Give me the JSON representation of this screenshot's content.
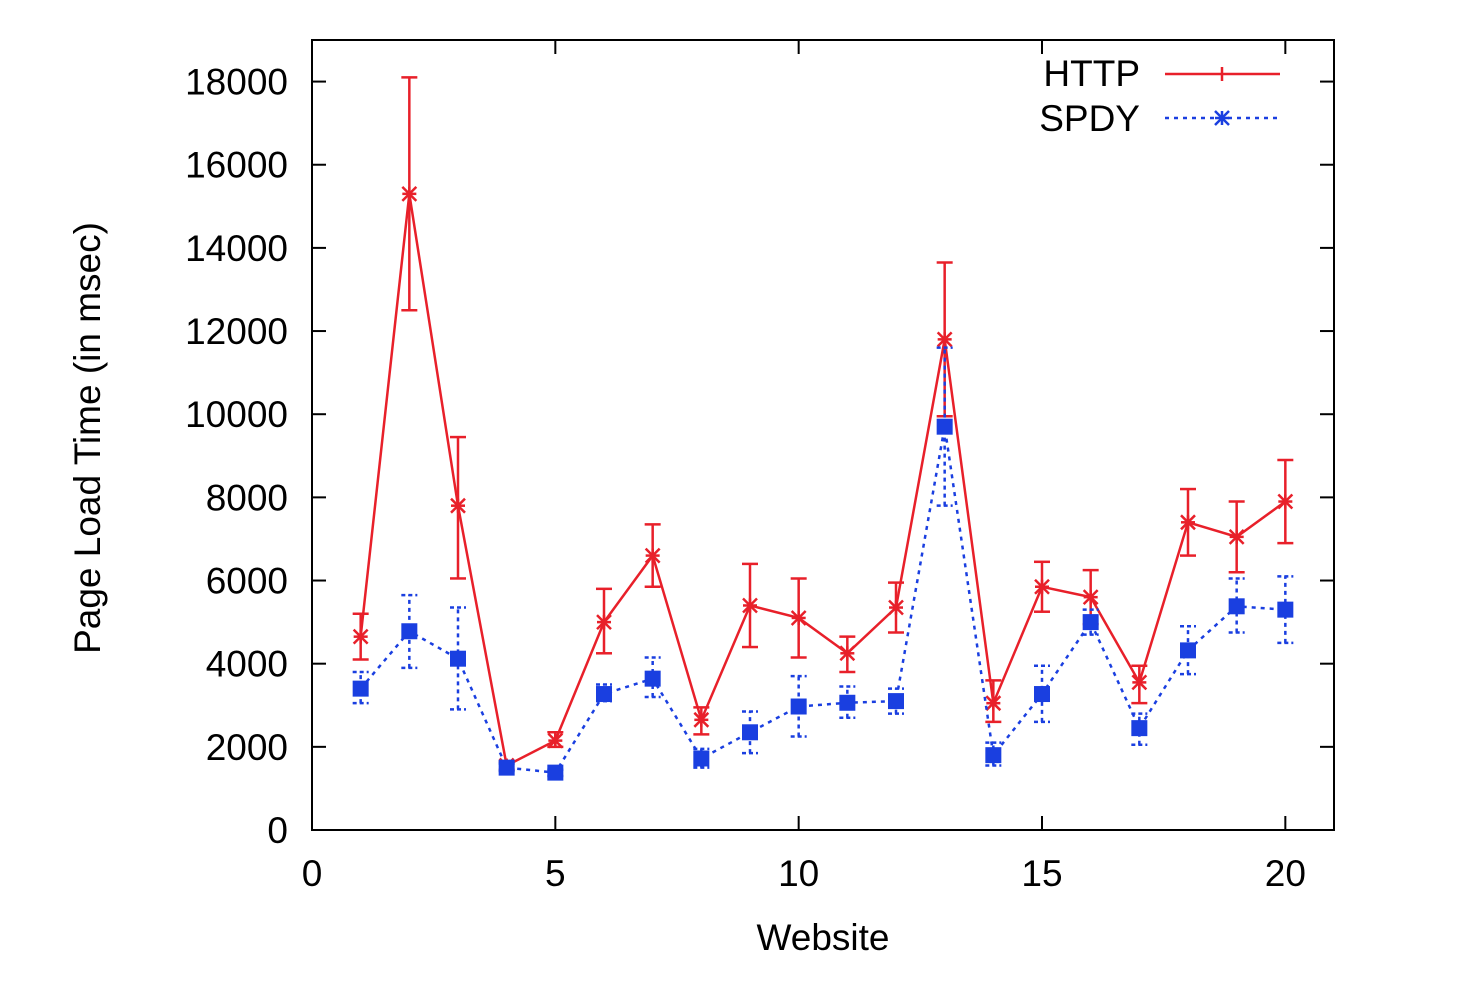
{
  "chart_data": {
    "type": "line",
    "xlabel": "Website",
    "ylabel": "Page Load Time (in msec)",
    "xlim": [
      0,
      21
    ],
    "ylim": [
      0,
      19000
    ],
    "xticks": [
      0,
      5,
      10,
      15,
      20
    ],
    "yticks": [
      0,
      2000,
      4000,
      6000,
      8000,
      10000,
      12000,
      14000,
      16000,
      18000
    ],
    "grid": false,
    "legend_position": "top-right",
    "x": [
      1,
      2,
      3,
      4,
      5,
      6,
      7,
      8,
      9,
      10,
      11,
      12,
      13,
      14,
      15,
      16,
      17,
      18,
      19,
      20
    ],
    "series": [
      {
        "name": "HTTP",
        "color": "#e8202a",
        "line_style": "solid",
        "marker": "star",
        "values": [
          4650,
          15300,
          7800,
          1550,
          2150,
          5000,
          6600,
          2650,
          5400,
          5100,
          4250,
          5350,
          11800,
          3050,
          5850,
          5600,
          3550,
          7400,
          7050,
          7900
        ],
        "err_low": [
          4100,
          12500,
          6050,
          1450,
          2000,
          4250,
          5850,
          2300,
          4400,
          4150,
          3800,
          4750,
          9950,
          2600,
          5250,
          4950,
          3050,
          6600,
          6200,
          6900
        ],
        "err_high": [
          5200,
          18100,
          9450,
          1650,
          2350,
          5800,
          7350,
          2950,
          6400,
          6050,
          4650,
          5950,
          13650,
          3600,
          6450,
          6250,
          3950,
          8200,
          7900,
          8900
        ]
      },
      {
        "name": "SPDY",
        "color": "#1a3fe0",
        "line_style": "dotted",
        "marker": "square",
        "values": [
          3400,
          4780,
          4120,
          1500,
          1380,
          3270,
          3640,
          1720,
          2350,
          2970,
          3060,
          3100,
          9700,
          1800,
          3270,
          5000,
          2450,
          4320,
          5380,
          5300
        ],
        "err_low": [
          3050,
          3900,
          2900,
          1420,
          1300,
          3100,
          3200,
          1500,
          1850,
          2250,
          2700,
          2800,
          7800,
          1550,
          2600,
          4700,
          2050,
          3750,
          4750,
          4500
        ],
        "err_high": [
          3800,
          5650,
          5350,
          1600,
          1450,
          3500,
          4150,
          1950,
          2850,
          3700,
          3450,
          3400,
          11600,
          2100,
          3950,
          5300,
          2800,
          4900,
          6050,
          6100
        ]
      }
    ]
  }
}
